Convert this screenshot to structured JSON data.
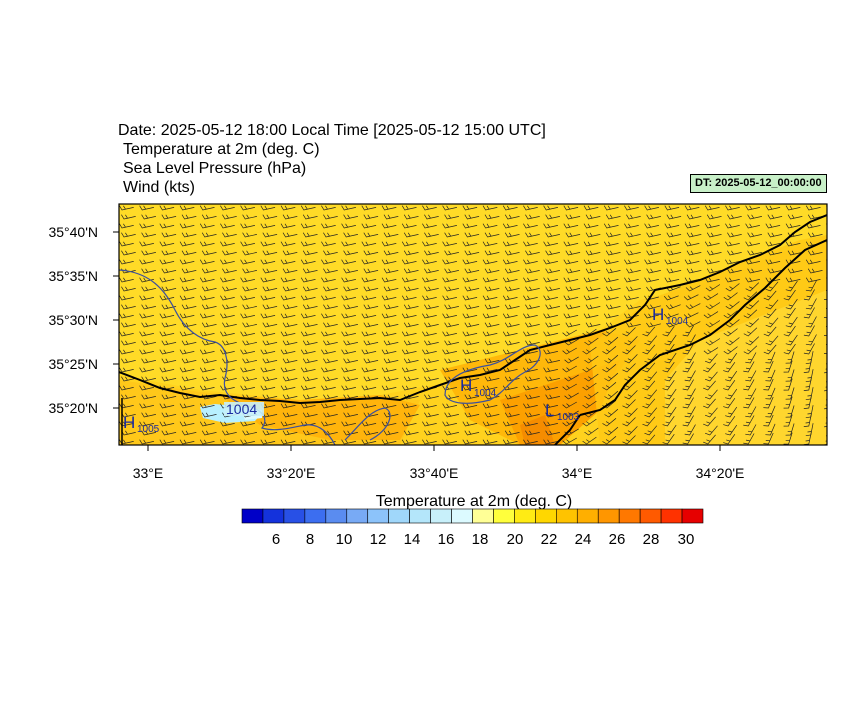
{
  "header": {
    "date_line": "Date: 2025-05-12  18:00 Local Time [2025-05-12  15:00 UTC]",
    "fields": [
      {
        "label": "Temperature at 2m   (deg. C)"
      },
      {
        "label": "Sea Level Pressure   (hPa)"
      },
      {
        "label": "Wind   (kts)"
      }
    ],
    "dt_badge": "DT: 2025-05-12_00:00:00"
  },
  "map": {
    "lat_labels": [
      "35°40'N",
      "35°35'N",
      "35°30'N",
      "35°25'N",
      "35°20'N"
    ],
    "lon_labels": [
      "33°E",
      "33°20'E",
      "33°40'E",
      "34°E",
      "34°20'E"
    ],
    "pressure_labels": [
      {
        "text": "H",
        "sub": "1005"
      },
      {
        "text": "1004",
        "sub": ""
      },
      {
        "text": "H",
        "sub": "1004"
      },
      {
        "text": "L",
        "sub": "1003"
      },
      {
        "text": "H",
        "sub": "1004"
      }
    ],
    "colors": {
      "land_base": "#ffd21e",
      "warm": "#ffb30a",
      "hot": "#f58c00",
      "cool": "#b8f0ff",
      "coast": "#000000",
      "isobar": "#3b4fa0",
      "label": "#1a2aa0"
    }
  },
  "colorbar": {
    "title": "Temperature at 2m  (deg. C)",
    "tick_labels": [
      "6",
      "8",
      "10",
      "12",
      "14",
      "16",
      "18",
      "20",
      "22",
      "24",
      "26",
      "28",
      "30"
    ],
    "colors": [
      "#0000c8",
      "#1432dc",
      "#2850e6",
      "#3c6ef0",
      "#5a8cf0",
      "#78aaf5",
      "#8cc3fa",
      "#a0d7fa",
      "#b4e6fa",
      "#c8f0fa",
      "#dcfaff",
      "#ffff96",
      "#ffff3c",
      "#ffeb14",
      "#ffd700",
      "#ffc300",
      "#ffaf00",
      "#ff9600",
      "#ff7800",
      "#ff5a00",
      "#ff3200",
      "#e60000"
    ]
  }
}
